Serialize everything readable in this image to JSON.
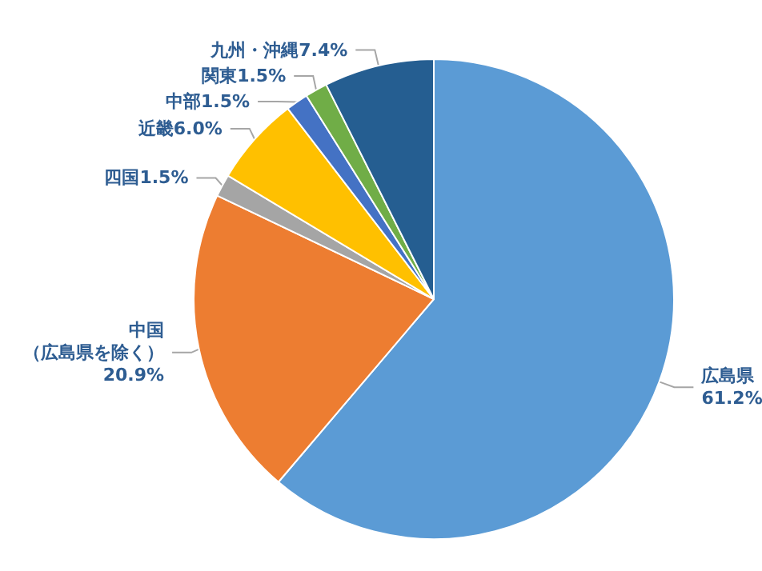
{
  "chart_data": {
    "type": "pie",
    "categories": [
      "広島県",
      "中国（広島県を除く）",
      "四国",
      "近畿",
      "中部",
      "関東",
      "九州・沖縄"
    ],
    "values": [
      61.2,
      20.9,
      1.5,
      6.0,
      1.5,
      1.5,
      7.4
    ],
    "value_labels": [
      "61.2%",
      "20.9%",
      "1.5%",
      "6.0%",
      "1.5%",
      "1.5%",
      "7.4%"
    ],
    "colors": [
      "#5b9bd5",
      "#ed7d31",
      "#a5a5a5",
      "#ffc000",
      "#4472c4",
      "#70ad47",
      "#255e91"
    ],
    "legend": false
  }
}
